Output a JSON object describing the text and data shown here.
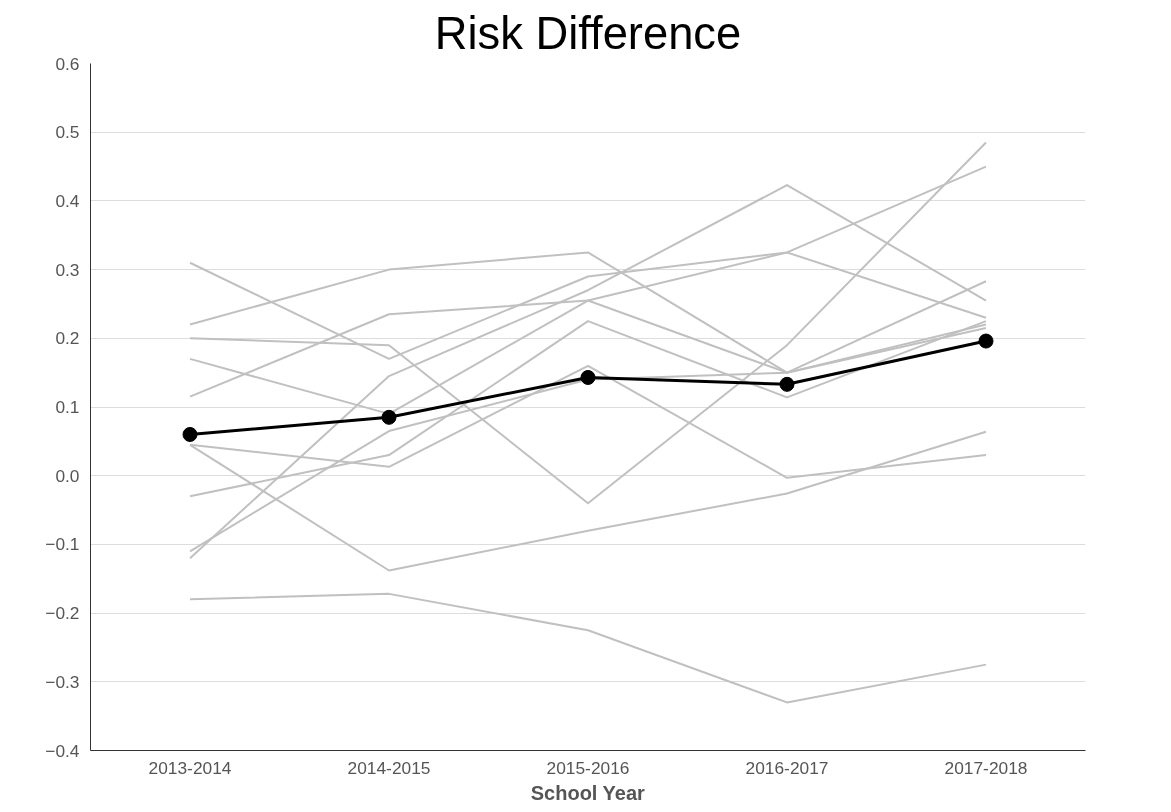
{
  "chart_data": {
    "type": "line",
    "title": "Risk Difference",
    "xlabel": "School Year",
    "categories": [
      "2013-2014",
      "2014-2015",
      "2015-2016",
      "2016-2017",
      "2017-2018"
    ],
    "ylim": [
      -0.4,
      0.6
    ],
    "yticks": [
      -0.4,
      -0.3,
      -0.2,
      -0.1,
      {
        "value": 0,
        "label": "0.0"
      },
      0.1,
      0.2,
      0.3,
      0.4,
      0.5,
      0.6
    ],
    "grid": "y",
    "line_style": "solid",
    "series": [
      {
        "color": "#c0c0c0",
        "marker": "none",
        "values": [
          0.31,
          0.17,
          0.29,
          0.325,
          0.45
        ]
      },
      {
        "color": "#c0c0c0",
        "marker": "none",
        "values": [
          0.22,
          0.3,
          0.325,
          0.15,
          0.22
        ]
      },
      {
        "color": "#c0c0c0",
        "marker": "none",
        "values": [
          0.2,
          0.19,
          -0.04,
          0.19,
          0.485
        ]
      },
      {
        "color": "#c0c0c0",
        "marker": "none",
        "values": [
          0.17,
          0.09,
          0.255,
          0.325,
          0.23
        ]
      },
      {
        "color": "#c0c0c0",
        "marker": "none",
        "values": [
          0.115,
          0.235,
          0.255,
          0.15,
          0.215
        ]
      },
      {
        "color": "#c0c0c0",
        "marker": "none",
        "values": [
          0.045,
          0.013,
          0.16,
          -0.003,
          0.03
        ]
      },
      {
        "color": "#c0c0c0",
        "marker": "none",
        "values": [
          0.045,
          -0.138,
          -0.08,
          -0.026,
          0.064
        ]
      },
      {
        "color": "#c0c0c0",
        "marker": "none",
        "values": [
          -0.03,
          0.03,
          0.225,
          0.114,
          0.225
        ]
      },
      {
        "color": "#c0c0c0",
        "marker": "none",
        "values": [
          -0.11,
          0.065,
          0.14,
          0.15,
          0.283
        ]
      },
      {
        "color": "#c0c0c0",
        "marker": "none",
        "values": [
          -0.12,
          0.145,
          0.27,
          0.423,
          0.255
        ]
      },
      {
        "color": "#c0c0c0",
        "marker": "none",
        "values": [
          -0.18,
          -0.172,
          -0.225,
          -0.33,
          -0.275
        ]
      },
      {
        "color": "#000000",
        "marker": "circle",
        "values": [
          0.06,
          0.085,
          0.143,
          0.133,
          0.196
        ]
      }
    ]
  }
}
